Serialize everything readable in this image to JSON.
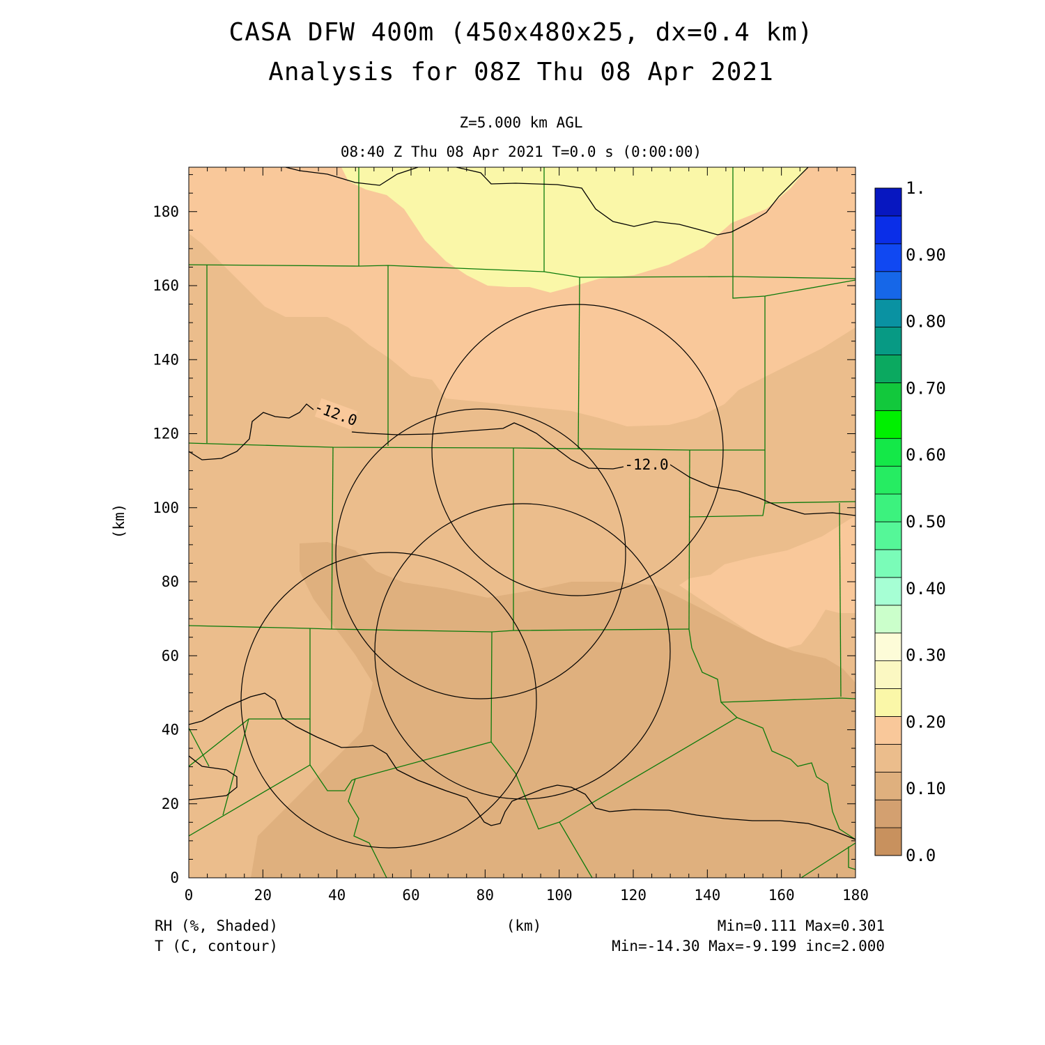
{
  "title_line1": "CASA DFW 400m (450x480x25, dx=0.4 km)",
  "title_line2": "Analysis for 08Z Thu 08 Apr 2021",
  "level_label": "Z=5.000 km AGL",
  "time_label": "08:40 Z Thu 08 Apr 2021   T=0.0 s (0:00:00)",
  "axes": {
    "x_label": "(km)",
    "y_label": "(km)",
    "x_range": [
      0,
      180
    ],
    "y_range": [
      0,
      192
    ],
    "x_ticks": [
      "0",
      "20",
      "40",
      "60",
      "80",
      "100",
      "120",
      "140",
      "160",
      "180"
    ],
    "y_ticks": [
      "0",
      "20",
      "40",
      "60",
      "80",
      "100",
      "120",
      "140",
      "160",
      "180"
    ]
  },
  "footer": {
    "shaded_field": "RH (%, Shaded)",
    "contour_field": "T (C, contour)",
    "shaded_stats": "Min=0.111 Max=0.301",
    "contour_stats": "Min=-14.30 Max=-9.199 inc=2.000"
  },
  "contour_labels": [
    "-12.0",
    "-12.0"
  ],
  "colorbar": {
    "colors": [
      "#c8915e",
      "#d3a070",
      "#dfb07e",
      "#ebbd8c",
      "#f9c89a",
      "#faf7a8",
      "#fbf8c2",
      "#fdfcd8",
      "#cbffcb",
      "#a6ffd4",
      "#7afcb8",
      "#55f798",
      "#3cf27e",
      "#26ec62",
      "#14e848",
      "#00f000",
      "#12c83c",
      "#0ba960",
      "#079a84",
      "#0a92a2",
      "#1667e8",
      "#1048f2",
      "#0a2ee8",
      "#0717c0"
    ],
    "labels": [
      "0.0",
      "0.10",
      "0.20",
      "0.30",
      "0.40",
      "0.50",
      "0.60",
      "0.70",
      "0.80",
      "0.90",
      "1."
    ]
  },
  "radar_rings": [
    {
      "center_km": [
        105,
        116
      ],
      "radius_km": 39
    },
    {
      "center_km": [
        79,
        88
      ],
      "radius_km": 39
    },
    {
      "center_km": [
        90,
        61
      ],
      "radius_km": 40
    },
    {
      "center_km": [
        54,
        48
      ],
      "radius_km": 40
    }
  ],
  "colors": {
    "county_lines": "#0a7a0a",
    "contours": "#000000",
    "frame": "#000000"
  }
}
